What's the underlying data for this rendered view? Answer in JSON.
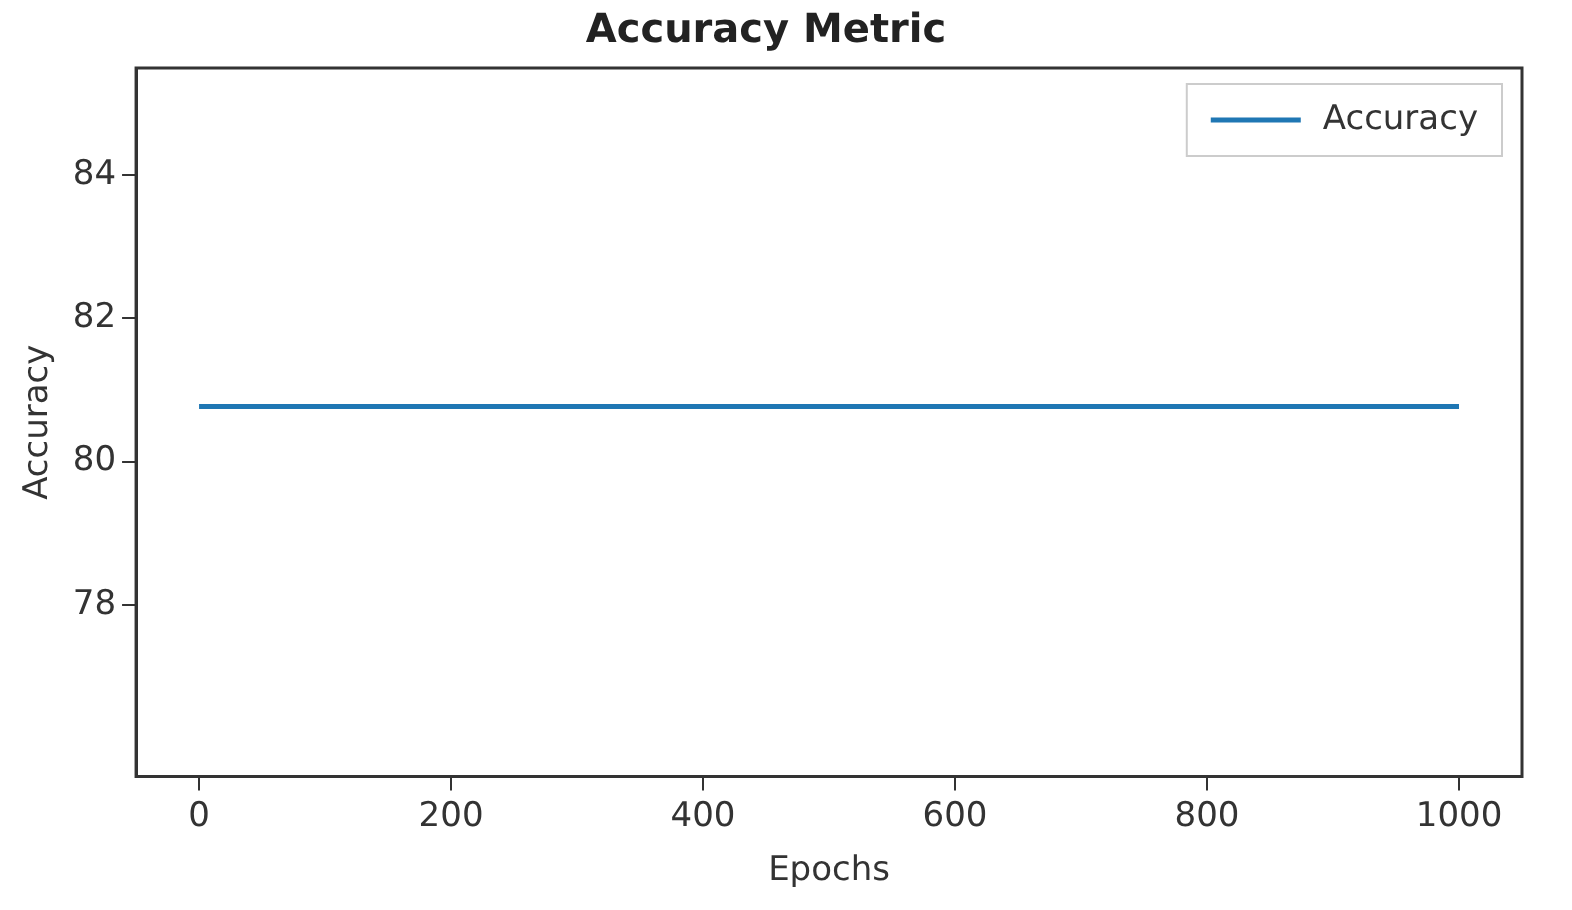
{
  "chart_data": {
    "type": "line",
    "title": "Accuracy Metric",
    "xlabel": "Epochs",
    "ylabel": "Accuracy",
    "x": [
      0,
      1000
    ],
    "series": [
      {
        "name": "Accuracy",
        "color": "#1f77b4",
        "values": [
          80.77,
          80.77
        ]
      }
    ],
    "xlim": [
      -50,
      1050
    ],
    "xticks": [
      0,
      200,
      400,
      600,
      800,
      1000
    ],
    "ylim": [
      75.6,
      85.5
    ],
    "yticks": [
      78,
      80,
      82,
      84
    ],
    "grid": false,
    "legend": "top right",
    "marker": "none",
    "line_style": "solid"
  }
}
